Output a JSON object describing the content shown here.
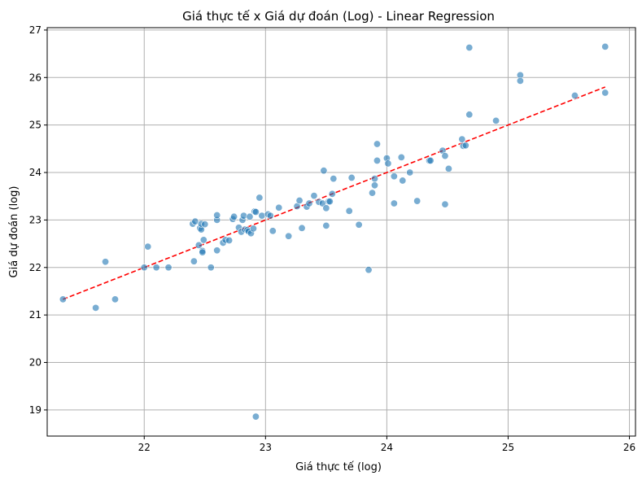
{
  "chart_data": {
    "type": "scatter",
    "title": "Giá thực tế x Giá dự đoán (Log) - Linear Regression",
    "xlabel": "Giá thực tế (log)",
    "ylabel": "Giá dự đoán (log)",
    "xlim": [
      21.2,
      26.05
    ],
    "ylim": [
      18.45,
      27.05
    ],
    "xticks": [
      22,
      23,
      24,
      25,
      26
    ],
    "yticks": [
      19,
      20,
      21,
      22,
      23,
      24,
      25,
      26,
      27
    ],
    "grid": true,
    "point_color": "#1f77b4",
    "line_color": "#ff0000",
    "series": [
      {
        "type": "scatter",
        "x": [
          21.33,
          21.6,
          21.68,
          21.76,
          22.0,
          22.03,
          22.1,
          22.2,
          22.4,
          22.41,
          22.42,
          22.45,
          22.46,
          22.47,
          22.47,
          22.48,
          22.48,
          22.49,
          22.5,
          22.55,
          22.6,
          22.6,
          22.6,
          22.65,
          22.67,
          22.7,
          22.73,
          22.74,
          22.78,
          22.8,
          22.81,
          22.82,
          22.83,
          22.85,
          22.86,
          22.87,
          22.88,
          22.9,
          22.91,
          22.92,
          22.95,
          22.97,
          23.02,
          23.04,
          23.06,
          23.11,
          23.19,
          23.26,
          23.28,
          23.3,
          23.34,
          23.36,
          23.4,
          23.44,
          23.47,
          23.48,
          23.5,
          23.5,
          23.52,
          23.53,
          23.55,
          23.56,
          23.69,
          23.71,
          23.77,
          23.85,
          23.88,
          23.9,
          23.9,
          23.92,
          23.92,
          24.0,
          24.01,
          24.06,
          24.06,
          24.12,
          24.13,
          24.19,
          24.25,
          24.35,
          24.36,
          24.46,
          24.48,
          24.48,
          24.51,
          24.62,
          24.63,
          24.65,
          24.68,
          24.68,
          24.9,
          25.1,
          25.1,
          25.55,
          25.8,
          25.8,
          22.92
        ],
        "y": [
          21.33,
          21.15,
          22.12,
          21.33,
          22.0,
          22.44,
          22.0,
          22.0,
          22.92,
          22.13,
          22.97,
          22.47,
          22.83,
          22.8,
          22.92,
          22.35,
          22.32,
          22.58,
          22.91,
          22.0,
          22.36,
          23.0,
          23.1,
          22.52,
          22.58,
          22.57,
          23.02,
          23.07,
          22.84,
          22.75,
          23.0,
          23.09,
          22.8,
          22.79,
          22.76,
          23.07,
          22.72,
          22.82,
          23.18,
          23.17,
          23.47,
          23.09,
          23.12,
          23.09,
          22.77,
          23.26,
          22.66,
          23.29,
          23.41,
          22.83,
          23.28,
          23.35,
          23.51,
          23.38,
          23.35,
          24.04,
          23.25,
          22.88,
          23.39,
          23.39,
          23.55,
          23.87,
          23.19,
          23.89,
          22.9,
          21.95,
          23.57,
          23.73,
          23.87,
          24.25,
          24.6,
          24.3,
          24.19,
          23.92,
          23.35,
          24.32,
          23.83,
          24.0,
          23.4,
          24.25,
          24.25,
          24.46,
          23.33,
          24.35,
          24.08,
          24.7,
          24.56,
          24.57,
          26.63,
          25.22,
          25.09,
          26.05,
          25.93,
          25.62,
          26.65,
          25.68,
          18.86
        ]
      },
      {
        "type": "line",
        "style": "dashed",
        "x": [
          21.33,
          25.8
        ],
        "y": [
          21.33,
          25.8
        ]
      }
    ]
  }
}
